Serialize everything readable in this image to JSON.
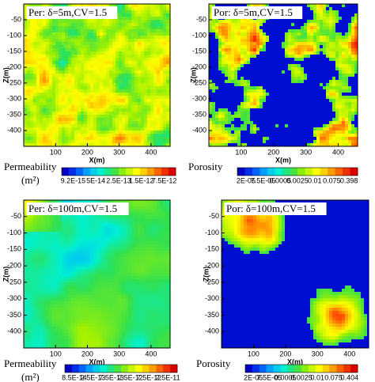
{
  "axes": {
    "x_label": "X(m)",
    "y_label": "Z(m)",
    "x_ticks": [
      100,
      200,
      300,
      400
    ],
    "y_ticks": [
      -50,
      -100,
      -150,
      -200,
      -250,
      -300,
      -350,
      -400
    ]
  },
  "panels": [
    {
      "label": "Per: δ=5m,CV=1.5",
      "property": "Permeability",
      "unit": "(m²)",
      "colorbar_labels": [
        "9.2E-15",
        "5E-14",
        "2.5E-13",
        "1.5E-12",
        "7.5E-12"
      ]
    },
    {
      "label": "Por: δ=5m,CV=1.5",
      "property": "Porosity",
      "colorbar_labels": [
        "2E-05",
        "7.5E-05",
        "0.0005",
        "0.0025",
        "0.01",
        "0.075",
        "0.398"
      ]
    },
    {
      "label": "Per: δ=100m,CV=1.5",
      "property": "Permeability",
      "unit": "(m²)",
      "colorbar_labels": [
        "8.5E-14",
        "2.5E-13",
        "7.5E-13",
        "2.5E-12",
        "7.5E-12",
        "2.5E-11"
      ]
    },
    {
      "label": "Por: δ=100m,CV=1.5",
      "property": "Porosity",
      "colorbar_labels": [
        "2E-05",
        "7.5E-05",
        "0.0005",
        "0.0025",
        "0.01",
        "0.075",
        "0.404"
      ]
    }
  ]
}
